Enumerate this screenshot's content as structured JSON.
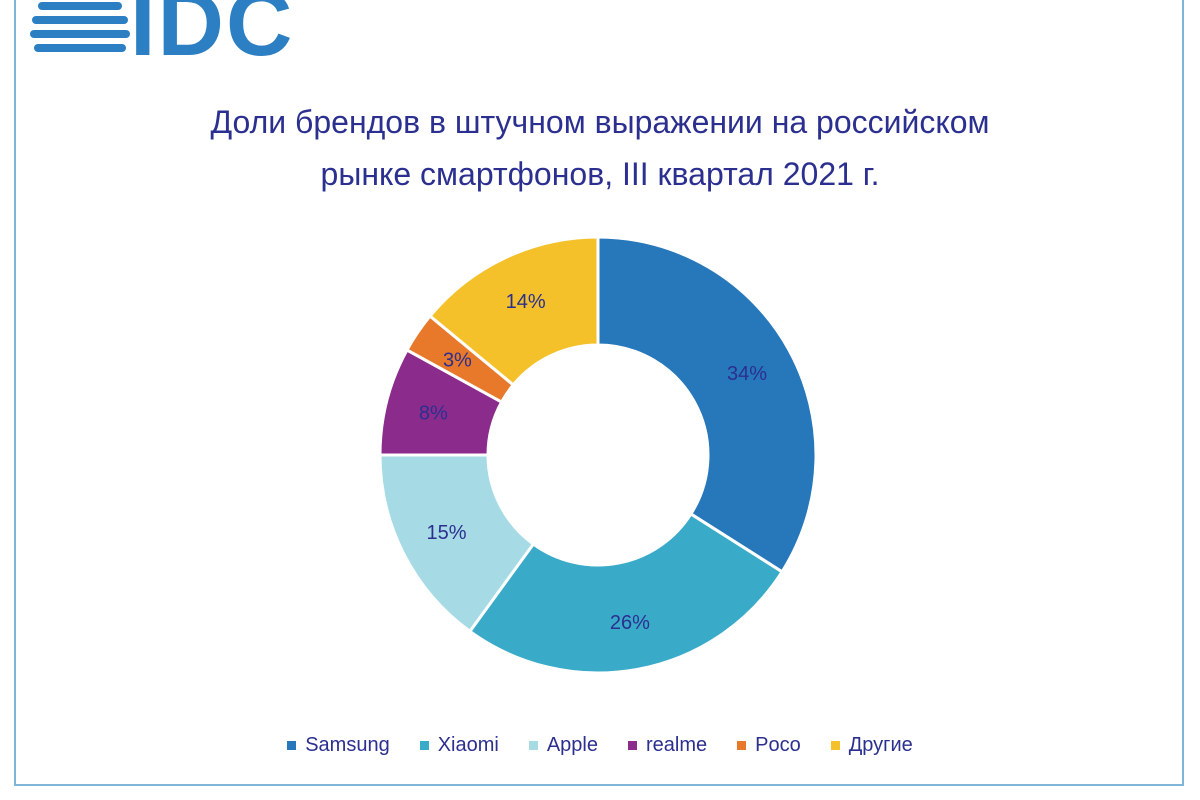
{
  "logo": {
    "text": "IDC"
  },
  "chart_data": {
    "type": "pie",
    "variant": "donut",
    "title_lines": [
      "Доли брендов в штучном выражении на российском",
      "рынке смартфонов, III квартал 2021 г."
    ],
    "categories": [
      "Samsung",
      "Xiaomi",
      "Apple",
      "realme",
      "Poco",
      "Другие"
    ],
    "values": [
      34,
      26,
      15,
      8,
      3,
      14
    ],
    "labels": [
      "34%",
      "26%",
      "15%",
      "8%",
      "3%",
      "14%"
    ],
    "colors": [
      "#2777bb",
      "#39abc8",
      "#a6dbe6",
      "#8b2c8c",
      "#e8782a",
      "#f4c12a"
    ],
    "legend_position": "bottom"
  }
}
